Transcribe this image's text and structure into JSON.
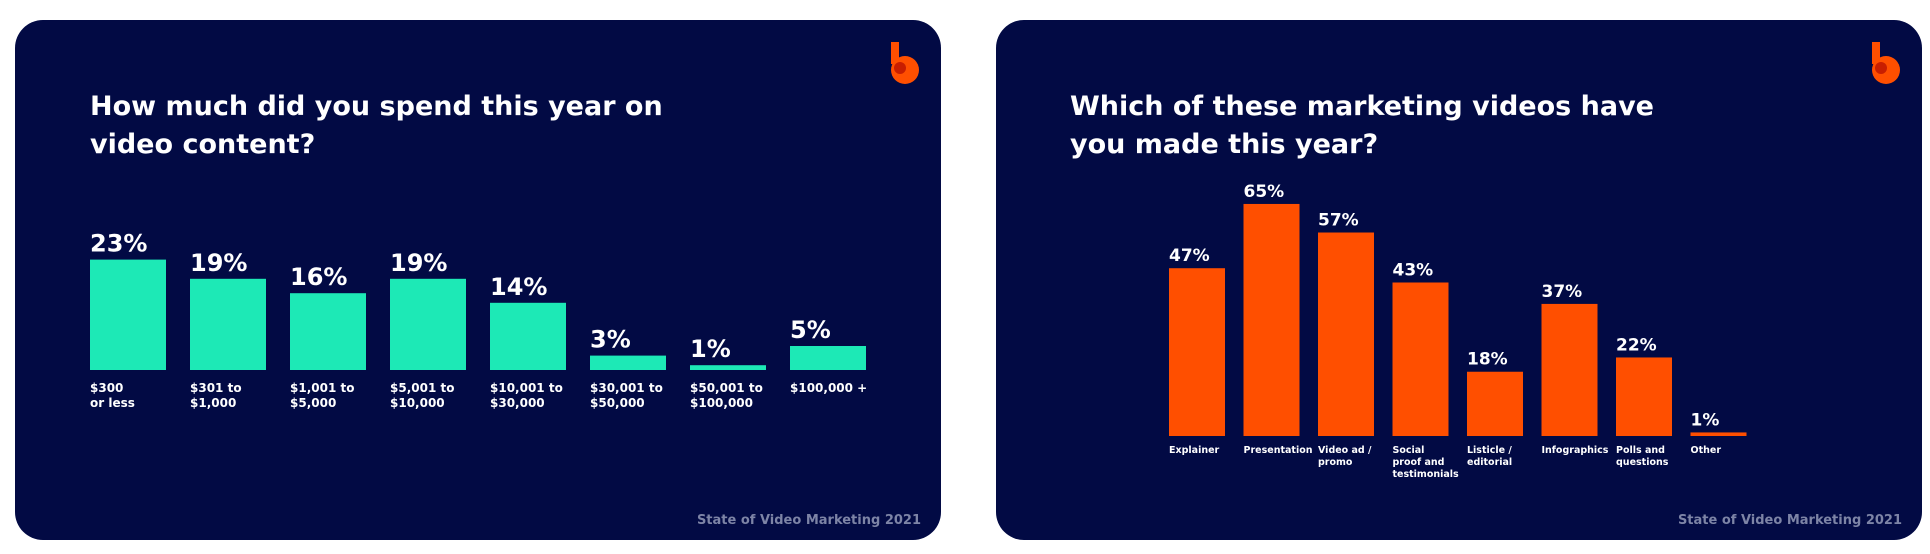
{
  "charts": [
    {
      "title": "How much did you spend this year on video content?",
      "footer": "State of Video Marketing 2021",
      "logo_icon": "brand-b-logo",
      "accent_color": "#1de9b6"
    },
    {
      "title": "Which of these marketing videos have you made this year?",
      "footer": "State of Video Marketing 2021",
      "logo_icon": "brand-b-logo",
      "accent_color": "#ff4f00"
    }
  ],
  "chart_data": [
    {
      "type": "bar",
      "title": "How much did you spend this year on video content?",
      "categories": [
        "$300 or less",
        "$301 to $1,000",
        "$1,001 to $5,000",
        "$5,001 to $10,000",
        "$10,001 to $30,000",
        "$30,001 to $50,000",
        "$50,001 to $100,000",
        "$100,000 +"
      ],
      "category_lines": [
        [
          "$300",
          "or less"
        ],
        [
          "$301 to",
          "$1,000"
        ],
        [
          "$1,001 to",
          "$5,000"
        ],
        [
          "$5,001 to",
          "$10,000"
        ],
        [
          "$10,001 to",
          "$30,000"
        ],
        [
          "$30,001 to",
          "$50,000"
        ],
        [
          "$50,001 to",
          "$100,000"
        ],
        [
          "$100,000 +"
        ]
      ],
      "values": [
        23,
        19,
        16,
        19,
        14,
        3,
        1,
        5
      ],
      "value_labels": [
        "23%",
        "19%",
        "16%",
        "19%",
        "14%",
        "3%",
        "1%",
        "5%"
      ],
      "unit": "%",
      "color": "#1de9b6",
      "grid": false,
      "legend": "none"
    },
    {
      "type": "bar",
      "title": "Which of these marketing videos have you made this year?",
      "categories": [
        "Explainer",
        "Presentation",
        "Video ad / promo",
        "Social proof and testimonials",
        "Listicle / editorial",
        "Infographics",
        "Polls and questions",
        "Other"
      ],
      "category_lines": [
        [
          "Explainer"
        ],
        [
          "Presentation"
        ],
        [
          "Video ad /",
          "promo"
        ],
        [
          "Social",
          "proof and",
          "testimonials"
        ],
        [
          "Listicle /",
          "editorial"
        ],
        [
          "Infographics"
        ],
        [
          "Polls and",
          "questions"
        ],
        [
          "Other"
        ]
      ],
      "values": [
        47,
        65,
        57,
        43,
        18,
        37,
        22,
        1
      ],
      "value_labels": [
        "47%",
        "65%",
        "57%",
        "43%",
        "18%",
        "37%",
        "22%",
        "1%"
      ],
      "unit": "%",
      "color": "#ff4f00",
      "grid": false,
      "legend": "none"
    }
  ]
}
